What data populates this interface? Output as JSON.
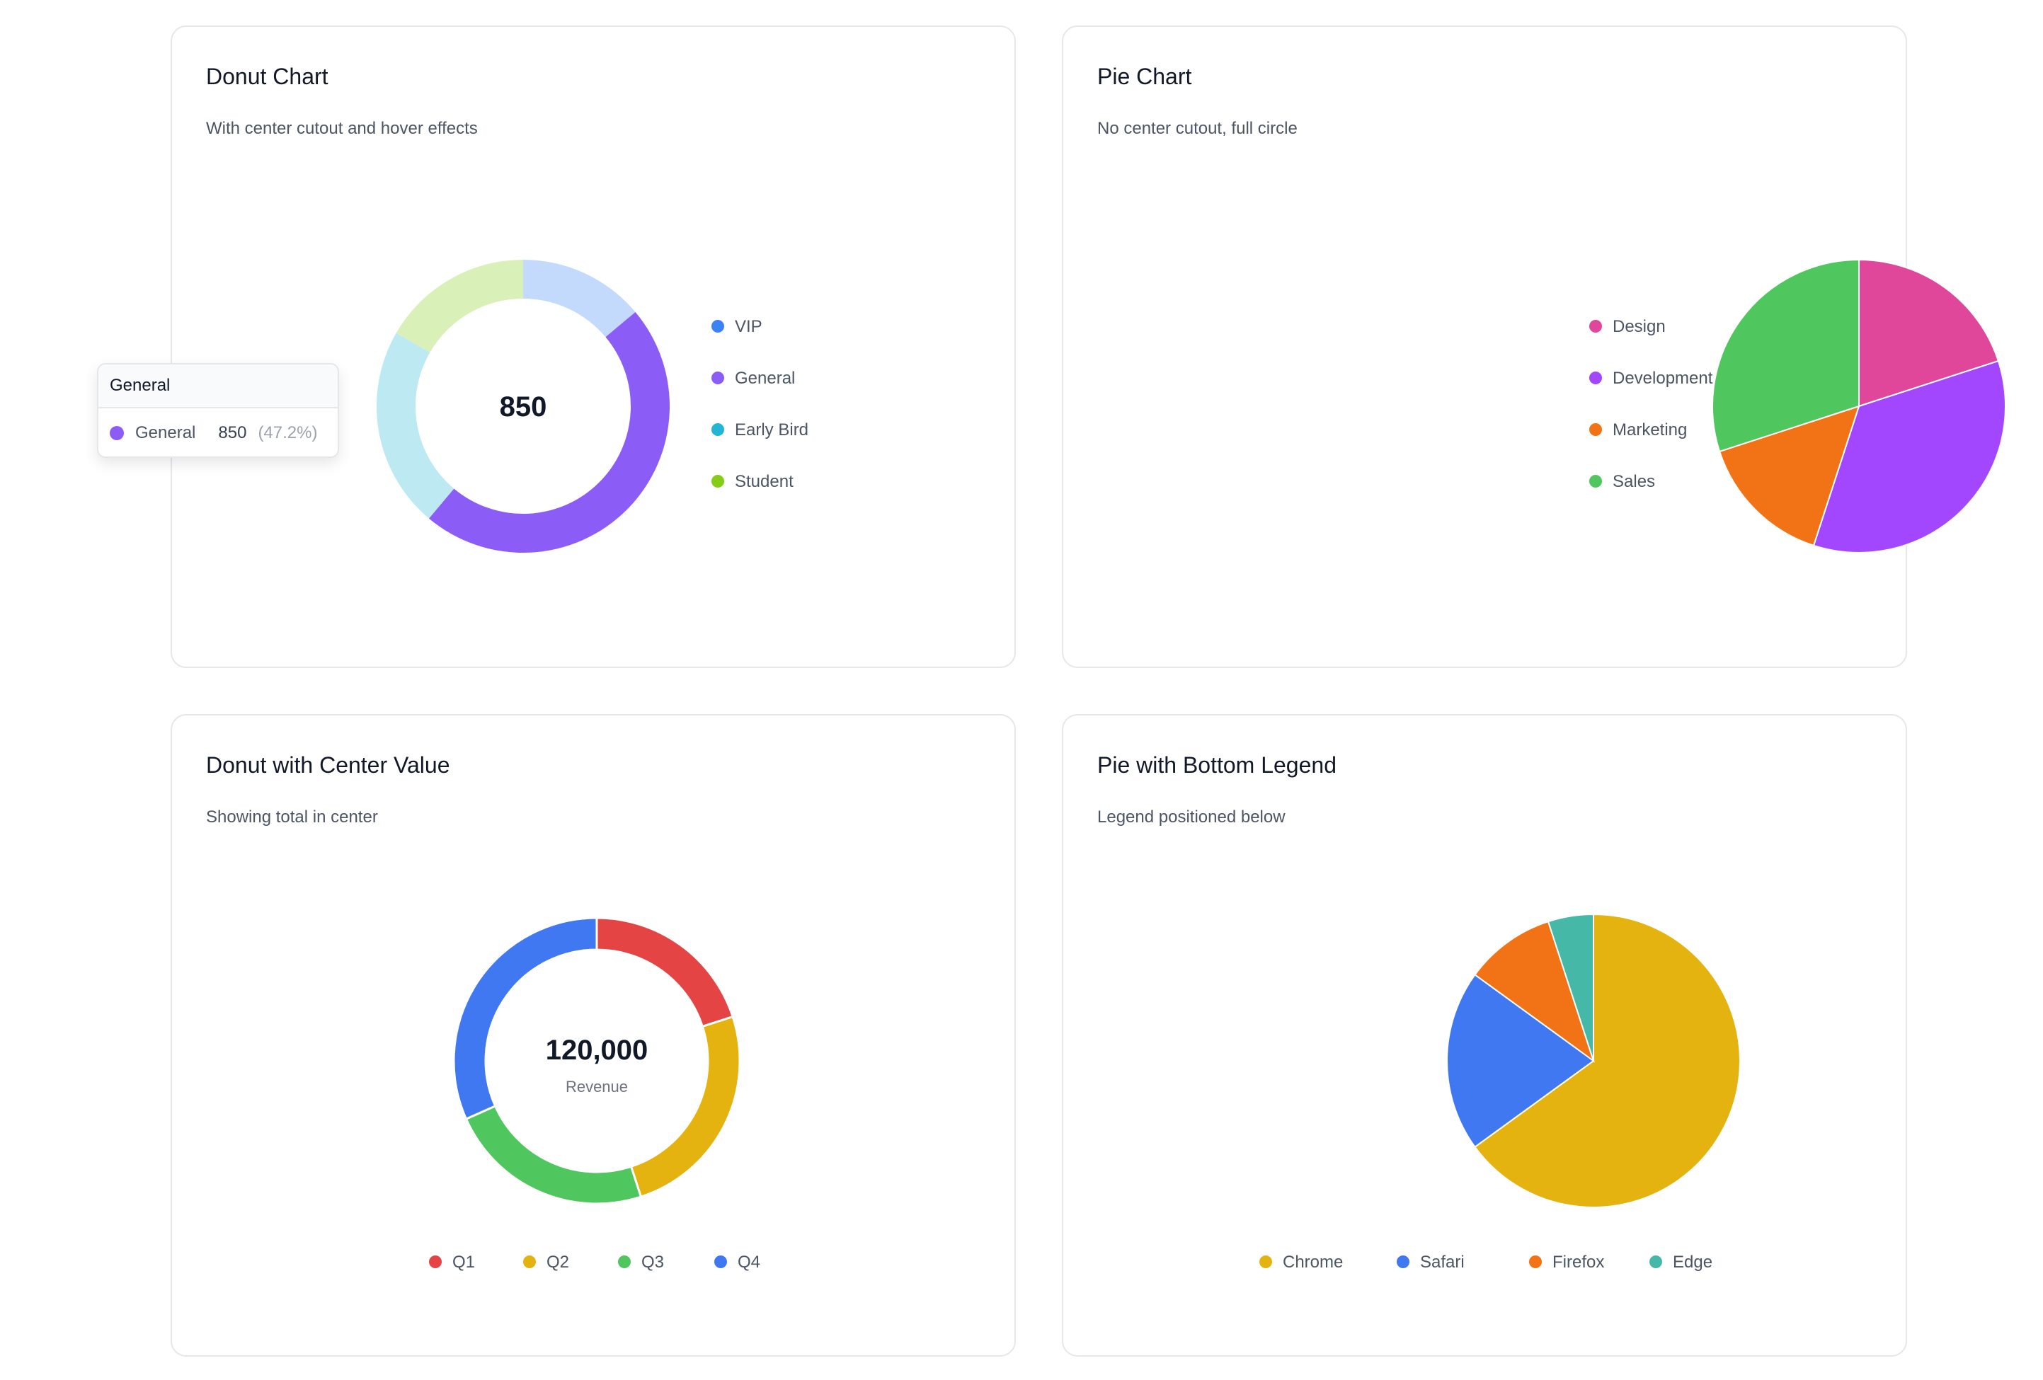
{
  "chart_data": [
    {
      "type": "pie",
      "variant": "donut",
      "title": "Donut Chart",
      "subtitle": "With center cutout and hover effects",
      "legend_position": "right",
      "categories": [
        "VIP",
        "General",
        "Early Bird",
        "Student"
      ],
      "values": [
        250,
        850,
        400,
        300
      ],
      "colors": [
        "#3b82f6",
        "#8b5cf6",
        "#22b5d8",
        "#84cc16"
      ],
      "highlighted": "General",
      "center_label": "850",
      "tooltip": {
        "title": "General",
        "name": "General",
        "value": "850",
        "percent": "(47.2%)"
      }
    },
    {
      "type": "pie",
      "title": "Pie Chart",
      "subtitle": "No center cutout, full circle",
      "legend_position": "right",
      "categories": [
        "Design",
        "Development",
        "Marketing",
        "Sales"
      ],
      "values": [
        20,
        35,
        15,
        30
      ],
      "colors": [
        "#e0479a",
        "#a347ff",
        "#f17316",
        "#4fc75e"
      ]
    },
    {
      "type": "pie",
      "variant": "donut",
      "title": "Donut with Center Value",
      "subtitle": "Showing total in center",
      "legend_position": "bottom",
      "categories": [
        "Q1",
        "Q2",
        "Q3",
        "Q4"
      ],
      "values": [
        24000,
        30000,
        28000,
        38000
      ],
      "colors": [
        "#e44444",
        "#e5b310",
        "#4fc75e",
        "#4078f2"
      ],
      "center_value": "120,000",
      "center_label": "Revenue"
    },
    {
      "type": "pie",
      "title": "Pie with Bottom Legend",
      "subtitle": "Legend positioned below",
      "legend_position": "bottom",
      "categories": [
        "Chrome",
        "Safari",
        "Firefox",
        "Edge"
      ],
      "values": [
        65,
        20,
        10,
        5
      ],
      "colors": [
        "#e5b310",
        "#4078f2",
        "#f17316",
        "#45b8a8"
      ]
    }
  ]
}
